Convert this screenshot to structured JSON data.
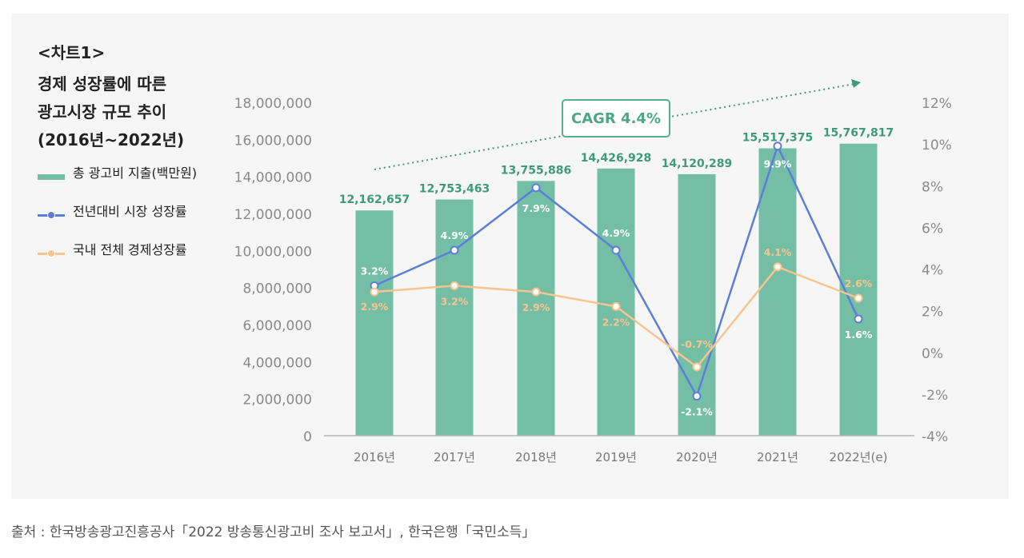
{
  "chart_label": "<차트1>",
  "title_lines": [
    "경제 성장률에 따른",
    "광고시장 규모 추이",
    "(2016년~2022년)"
  ],
  "annotation": "CAGR 4.4%",
  "source": "출처 : 한국방송광고진흥공사「2022 방송통신광고비 조사 보고서」, 한국은행「국민소득」",
  "colors": {
    "bar": "#74bea6",
    "bar_label": "#3f9a7b",
    "market": "#5b7fd6",
    "economy": "#f8c48f",
    "trend": "#3f9a7b"
  },
  "chart_data": {
    "type": "bar",
    "title": "경제 성장률에 따른 광고시장 규모 추이 (2016년~2022년)",
    "categories": [
      "2016년",
      "2017년",
      "2018년",
      "2019년",
      "2020년",
      "2021년",
      "2022년(e)"
    ],
    "y_left_lim": [
      0,
      18000000
    ],
    "y_left_ticks": [
      "0",
      "2,000,000",
      "4,000,000",
      "6,000,000",
      "8,000,000",
      "10,000,000",
      "12,000,000",
      "14,000,000",
      "16,000,000",
      "18,000,000"
    ],
    "y_right_lim": [
      -4,
      12
    ],
    "y_right_ticks": [
      "-4%",
      "-2%",
      "0%",
      "2%",
      "4%",
      "6%",
      "8%",
      "10%",
      "12%"
    ],
    "series": [
      {
        "name": "총 광고비 지출(백만원)",
        "type": "bar",
        "axis": "left",
        "values": [
          12162657,
          12753463,
          13755886,
          14426928,
          14120289,
          15517375,
          15767817
        ],
        "labels": [
          "12,162,657",
          "12,753,463",
          "13,755,886",
          "14,426,928",
          "14,120,289",
          "15,517,375",
          "15,767,817"
        ]
      },
      {
        "name": "전년대비 시장 성장률",
        "type": "line",
        "axis": "right",
        "values": [
          3.2,
          4.9,
          7.9,
          4.9,
          -2.1,
          9.9,
          1.6
        ],
        "labels": [
          "3.2%",
          "4.9%",
          "7.9%",
          "4.9%",
          "-2.1%",
          "9.9%",
          "1.6%"
        ]
      },
      {
        "name": "국내 전체 경제성장률",
        "type": "line",
        "axis": "right",
        "values": [
          2.9,
          3.2,
          2.9,
          2.2,
          -0.7,
          4.1,
          2.6
        ],
        "labels": [
          "2.9%",
          "3.2%",
          "2.9%",
          "2.2%",
          "-0.7%",
          "4.1%",
          "2.6%"
        ]
      }
    ]
  }
}
